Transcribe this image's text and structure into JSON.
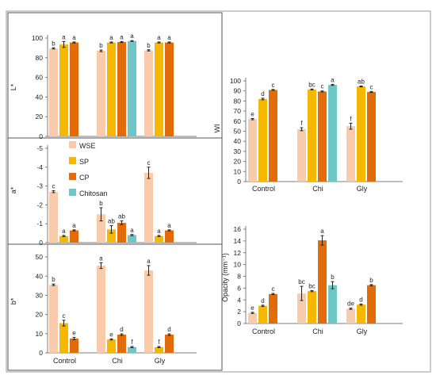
{
  "colors": {
    "WSE": "#f8cbad",
    "SP": "#f5b700",
    "CP": "#e36c0a",
    "Chitosan": "#6fc6c6",
    "WSE_bottom": "#e8b89a",
    "frame": "#808080"
  },
  "legend": [
    "WSE",
    "SP",
    "CP",
    "Chitosan"
  ],
  "chart_data": [
    {
      "type": "bar",
      "id": "lstar",
      "ylabel": "L*",
      "ylim": [
        0,
        100
      ],
      "yticks": [
        "0",
        "20",
        "40",
        "60",
        "80",
        "100"
      ],
      "categories": [
        "Control",
        "Chi",
        "Gly"
      ],
      "series": [
        {
          "name": "WSE",
          "values": [
            89.5,
            87,
            87.5
          ],
          "err": [
            0.6,
            0.8,
            0.6
          ],
          "letters": [
            "b",
            "b",
            "b"
          ]
        },
        {
          "name": "SP",
          "values": [
            93.5,
            95.5,
            95.5
          ],
          "err": [
            3,
            0.5,
            0.5
          ],
          "letters": [
            "a",
            "a",
            "a"
          ]
        },
        {
          "name": "CP",
          "values": [
            95.5,
            96,
            95.5
          ],
          "err": [
            0.5,
            0.5,
            0.5
          ],
          "letters": [
            "a",
            "a",
            "a"
          ]
        },
        {
          "name": "Chitosan",
          "values": [
            null,
            97,
            null
          ],
          "err": [
            null,
            0.4,
            null
          ],
          "letters": [
            "",
            "a",
            ""
          ]
        }
      ]
    },
    {
      "type": "bar",
      "id": "astar",
      "ylabel": "a*",
      "ylim": [
        -5,
        0
      ],
      "yticks": [
        "0",
        "-1",
        "-2",
        "-3",
        "-4",
        "-5"
      ],
      "categories": [
        "Control",
        "Chi",
        "Gly"
      ],
      "series": [
        {
          "name": "WSE",
          "values": [
            -2.7,
            -1.5,
            -3.7
          ],
          "err": [
            0.05,
            0.35,
            0.3
          ],
          "letters": [
            "c",
            "b",
            "c"
          ]
        },
        {
          "name": "SP",
          "values": [
            -0.35,
            -0.7,
            -0.35
          ],
          "err": [
            0.03,
            0.2,
            0.03
          ],
          "letters": [
            "a",
            "ab",
            "a"
          ]
        },
        {
          "name": "CP",
          "values": [
            -0.65,
            -1.05,
            -0.65
          ],
          "err": [
            0.03,
            0.1,
            0.03
          ],
          "letters": [
            "a",
            "ab",
            "a"
          ]
        },
        {
          "name": "Chitosan",
          "values": [
            null,
            -0.4,
            null
          ],
          "err": [
            null,
            0.03,
            null
          ],
          "letters": [
            "",
            "a",
            ""
          ]
        }
      ]
    },
    {
      "type": "bar",
      "id": "bstar",
      "ylabel": "b*",
      "ylim": [
        0,
        55
      ],
      "yticks": [
        "0",
        "10",
        "20",
        "30",
        "40",
        "50"
      ],
      "categories": [
        "Control",
        "Chi",
        "Gly"
      ],
      "xtick_labels": [
        "Control",
        "Chi",
        "Gly"
      ],
      "series": [
        {
          "name": "WSE",
          "values": [
            35.5,
            45.5,
            43
          ],
          "err": [
            0.4,
            1.5,
            2.5
          ],
          "letters": [
            "b",
            "a",
            "a"
          ]
        },
        {
          "name": "SP",
          "values": [
            15.5,
            7,
            3
          ],
          "err": [
            1.5,
            0.3,
            0.3
          ],
          "letters": [
            "c",
            "e",
            "f"
          ]
        },
        {
          "name": "CP",
          "values": [
            7.5,
            9.5,
            9.5
          ],
          "err": [
            0.6,
            0.4,
            0.4
          ],
          "letters": [
            "e",
            "d",
            "d"
          ]
        },
        {
          "name": "Chitosan",
          "values": [
            null,
            3,
            null
          ],
          "err": [
            null,
            0.3,
            null
          ],
          "letters": [
            "",
            "f",
            ""
          ]
        }
      ]
    },
    {
      "type": "bar",
      "id": "wi",
      "ylabel": "WI",
      "ylim": [
        0,
        100
      ],
      "yticks": [
        "0",
        "10",
        "20",
        "30",
        "40",
        "50",
        "60",
        "70",
        "80",
        "90",
        "100"
      ],
      "categories": [
        "Control",
        "Chi",
        "Gly"
      ],
      "xtick_labels": [
        "Control",
        "Chi",
        "Gly"
      ],
      "series": [
        {
          "name": "WSE",
          "values": [
            62,
            52,
            55
          ],
          "err": [
            0.6,
            1.5,
            3
          ],
          "letters": [
            "e",
            "f",
            "f"
          ]
        },
        {
          "name": "SP",
          "values": [
            82,
            91.5,
            94.5
          ],
          "err": [
            0.8,
            0.4,
            0.4
          ],
          "letters": [
            "d",
            "bc",
            "ab"
          ]
        },
        {
          "name": "CP",
          "values": [
            91,
            89.5,
            89
          ],
          "err": [
            0.5,
            0.5,
            0.5
          ],
          "letters": [
            "c",
            "c",
            "c"
          ]
        },
        {
          "name": "Chitosan",
          "values": [
            null,
            96,
            null
          ],
          "err": [
            null,
            0.5,
            null
          ],
          "letters": [
            "",
            "a",
            ""
          ]
        }
      ]
    },
    {
      "type": "bar",
      "id": "opacity",
      "ylabel": "Opacity (mm⁻¹)",
      "ylim": [
        0,
        16
      ],
      "yticks": [
        "0",
        "2",
        "4",
        "6",
        "8",
        "10",
        "12",
        "14",
        "16"
      ],
      "categories": [
        "Control",
        "Chi",
        "Gly"
      ],
      "xtick_labels": [
        "Control",
        "Chi",
        "Gly"
      ],
      "series": [
        {
          "name": "WSE",
          "values": [
            1.8,
            5.1,
            2.5
          ],
          "err": [
            0.1,
            1.2,
            0.1
          ],
          "letters": [
            "e",
            "bc",
            "de"
          ]
        },
        {
          "name": "SP",
          "values": [
            3,
            5.5,
            3.2
          ],
          "err": [
            0.1,
            0.1,
            0.1
          ],
          "letters": [
            "d",
            "bc",
            "d"
          ]
        },
        {
          "name": "CP",
          "values": [
            5,
            14.1,
            6.5
          ],
          "err": [
            0.1,
            0.8,
            0.1
          ],
          "letters": [
            "c",
            "a",
            "b"
          ]
        },
        {
          "name": "Chitosan",
          "values": [
            null,
            6.5,
            null
          ],
          "err": [
            null,
            0.6,
            null
          ],
          "letters": [
            "",
            "b",
            ""
          ]
        }
      ]
    }
  ]
}
